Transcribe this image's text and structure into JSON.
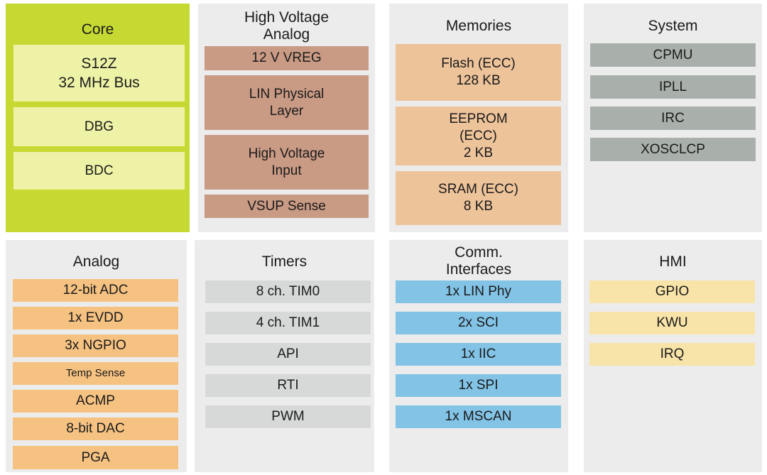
{
  "panels": {
    "core": {
      "title": "Core",
      "items": [
        "S12Z\n32 MHz  Bus",
        "DBG",
        "BDC"
      ]
    },
    "high_voltage_analog": {
      "title": "High Voltage\nAnalog",
      "items": [
        "12 V VREG",
        "LIN Physical\nLayer",
        "High Voltage\nInput",
        "VSUP Sense"
      ]
    },
    "memories": {
      "title": "Memories",
      "items": [
        "Flash (ECC)\n128 KB",
        "EEPROM\n(ECC)\n2 KB",
        "SRAM (ECC)\n8 KB"
      ]
    },
    "system": {
      "title": "System",
      "items": [
        "CPMU",
        "IPLL",
        "IRC",
        "XOSCLCP"
      ]
    },
    "analog": {
      "title": "Analog",
      "items": [
        "12-bit ADC",
        "1x EVDD",
        "3x NGPIO",
        "Temp Sense",
        "ACMP",
        "8-bit DAC",
        "PGA"
      ]
    },
    "timers": {
      "title": "Timers",
      "items": [
        "8 ch. TIM0",
        "4 ch. TIM1",
        "API",
        "RTI",
        "PWM"
      ]
    },
    "comm_interfaces": {
      "title": "Comm.\nInterfaces",
      "items": [
        "1x LIN  Phy",
        "2x SCI",
        "1x IIC",
        "1x SPI",
        "1x MSCAN"
      ]
    },
    "hmi": {
      "title": "HMI",
      "items": [
        "GPIO",
        "KWU",
        "IRQ"
      ]
    }
  },
  "colors": {
    "core_panel": "#c6d932",
    "core_box": "#eef2a6",
    "high_voltage_box": "#c99a84",
    "memory_box": "#edc39a",
    "system_box": "#a9b0ab",
    "analog_box": "#f6c282",
    "timer_box": "#d7d9d8",
    "comm_box": "#82c3e6",
    "hmi_box": "#f8e4a8",
    "panel_bg": "#ececec"
  }
}
